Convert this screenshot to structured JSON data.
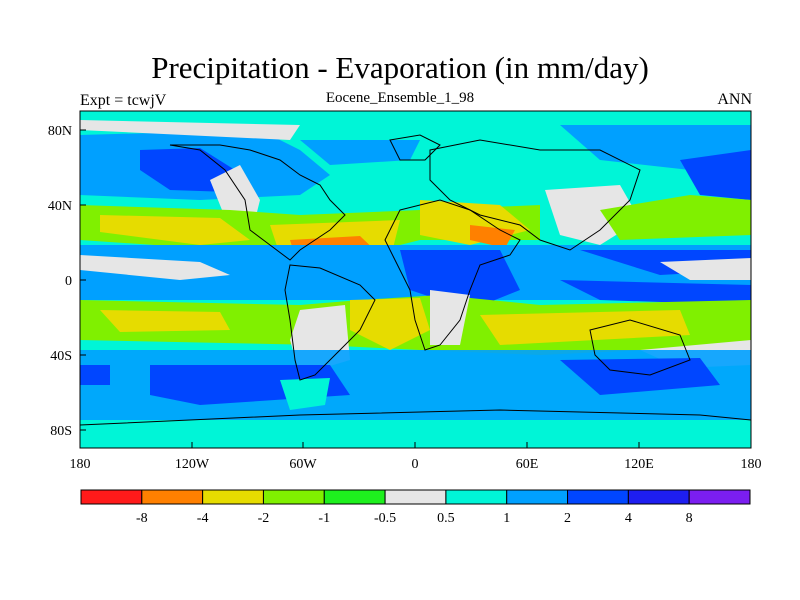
{
  "title": "Precipitation - Evaporation (in mm/day)",
  "subtitle_left": "Expt = tcwjV",
  "subtitle_center": "Eocene_Ensemble_1_98",
  "subtitle_right": "ANN",
  "lat_labels": [
    "80N",
    "40N",
    "0",
    "40S",
    "80S"
  ],
  "lon_labels": [
    "180",
    "120W",
    "60W",
    "0",
    "60E",
    "120E",
    "180"
  ],
  "colorbar": {
    "colors": [
      "#ff1a1a",
      "#ff8000",
      "#e6dc00",
      "#80f000",
      "#1ef01e",
      "#e6e6e6",
      "#00f5d7",
      "#00a0ff",
      "#0046ff",
      "#1e1ef0",
      "#7b1ef0"
    ],
    "labels": [
      "-8",
      "-4",
      "-2",
      "-1",
      "-0.5",
      "0.5",
      "1",
      "2",
      "4",
      "8"
    ]
  }
}
